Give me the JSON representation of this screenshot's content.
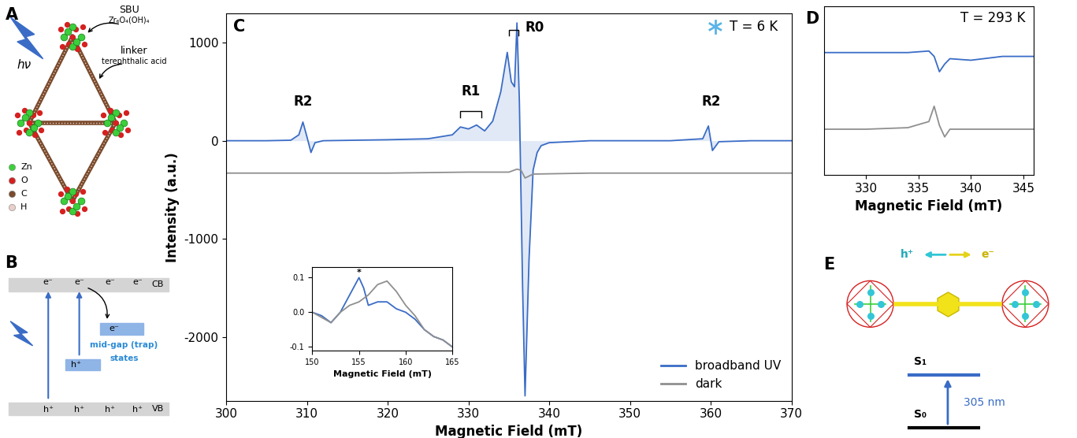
{
  "panel_labels": [
    "A",
    "B",
    "C",
    "D",
    "E"
  ],
  "chart_data": [
    {
      "type": "line",
      "x_label": "Magnetic Field (mT)",
      "y_label": "Intensity (a.u.)",
      "xlim": [
        300,
        370
      ],
      "xticks": [
        300,
        310,
        320,
        330,
        340,
        350,
        360,
        370
      ],
      "ylim": [
        -2650,
        1300
      ],
      "yticks": [
        -2000,
        -1000,
        0,
        1000
      ],
      "legend": "lower right",
      "condition": "T = 6 K",
      "series": [
        {
          "name": "broadband UV",
          "color": "#3a6cc6",
          "type": "area",
          "x": [
            300,
            305,
            308,
            309,
            309.5,
            310,
            310.5,
            311,
            312,
            320,
            325,
            328,
            329,
            330,
            331,
            332,
            333,
            334,
            334.8,
            335.3,
            335.7,
            336,
            336.3,
            336.7,
            337,
            337.5,
            338,
            338.5,
            339,
            340,
            345,
            350,
            355,
            359,
            359.7,
            360.2,
            361,
            365,
            370
          ],
          "values": [
            0,
            0,
            5,
            60,
            190,
            40,
            -120,
            -20,
            0,
            10,
            20,
            60,
            140,
            120,
            160,
            100,
            200,
            500,
            900,
            600,
            550,
            1200,
            400,
            -1500,
            -2600,
            -1200,
            -300,
            -120,
            -50,
            -20,
            0,
            0,
            0,
            20,
            150,
            -100,
            -10,
            0,
            0
          ]
        },
        {
          "name": "dark",
          "color": "#8f8f8f",
          "type": "line",
          "x": [
            300,
            320,
            330,
            335,
            336,
            336.5,
            337,
            338,
            345,
            370
          ],
          "values": [
            -330,
            -330,
            -320,
            -320,
            -290,
            -300,
            -380,
            -340,
            -330,
            -330
          ]
        }
      ],
      "annotations": [
        {
          "text": "R2",
          "x": 309.5,
          "y": 330
        },
        {
          "text": "R2",
          "x": 360,
          "y": 330
        },
        {
          "text": "R1",
          "x": 330.3,
          "y": 430,
          "bracket": [
            329,
            331.6,
            300
          ]
        },
        {
          "text": "R0",
          "x": 337.0,
          "y": 1150,
          "bracket": [
            335,
            336.2,
            1130
          ]
        }
      ]
    },
    {
      "type": "line",
      "x_label": "Magnetic Field (mT)",
      "xlim": [
        150,
        165
      ],
      "xticks": [
        150,
        155,
        160,
        165
      ],
      "ylim": [
        -0.11,
        0.13
      ],
      "yticks": [
        -0.1,
        {
          "value": 0,
          "label": "0.0"
        },
        0.1
      ],
      "series": [
        {
          "color": "#3a6cc6",
          "type": "line",
          "x": [
            150,
            151,
            152,
            153,
            154,
            155,
            155.5,
            156,
            157,
            158,
            159,
            160,
            161,
            162,
            163,
            164,
            165
          ],
          "values": [
            0.0,
            -0.01,
            -0.03,
            0.0,
            0.05,
            0.1,
            0.07,
            0.02,
            0.03,
            0.03,
            0.01,
            0.0,
            -0.02,
            -0.05,
            -0.07,
            -0.08,
            -0.1
          ]
        },
        {
          "color": "#8f8f8f",
          "type": "line",
          "x": [
            150,
            152,
            153,
            154,
            155,
            156,
            157,
            158,
            159,
            160,
            161,
            162,
            163,
            164,
            165
          ],
          "values": [
            0.0,
            -0.03,
            0.0,
            0.02,
            0.03,
            0.05,
            0.08,
            0.09,
            0.06,
            0.02,
            -0.01,
            -0.05,
            -0.07,
            -0.08,
            -0.1
          ]
        }
      ],
      "annotations": [
        {
          "text": "*",
          "x": 155,
          "y": 0.103
        }
      ]
    },
    {
      "type": "line",
      "x_label": "Magnetic Field (mT)",
      "condition": "T = 293 K",
      "xlim": [
        326,
        346
      ],
      "xticks": [
        330,
        335,
        340,
        345
      ],
      "ylim": [
        -0.6,
        1.6
      ],
      "tick_labels": "x",
      "series": [
        {
          "color": "#3a6cc6",
          "type": "line",
          "x": [
            326,
            330,
            334,
            336,
            336.5,
            337,
            337.5,
            338,
            340,
            343,
            346
          ],
          "values": [
            1.0,
            1.0,
            1.0,
            1.02,
            0.95,
            0.75,
            0.85,
            0.92,
            0.9,
            0.95,
            0.95
          ]
        },
        {
          "color": "#8f8f8f",
          "type": "line",
          "x": [
            326,
            330,
            334,
            336,
            336.5,
            337,
            337.5,
            338,
            340,
            346
          ],
          "values": [
            0.0,
            0.0,
            0.02,
            0.1,
            0.3,
            0.05,
            -0.1,
            0.0,
            0.0,
            0.0
          ]
        }
      ]
    }
  ],
  "diagrams": {
    "A": {
      "sbu": "SBU",
      "sbu_formula": "Zr₆O₄(OH)₄",
      "linker": "linker",
      "linker_name": "terephthalic acid",
      "light": "hν",
      "legend": [
        {
          "name": "Zn",
          "color": "#3ccf3c"
        },
        {
          "name": "O",
          "color": "#d62020"
        },
        {
          "name": "C",
          "color": "#7a4b2c"
        },
        {
          "name": "H",
          "color": "#e9cfc9"
        }
      ]
    },
    "B": {
      "cb": "CB",
      "vb": "VB",
      "cb_carriers": [
        "e⁻",
        "e⁻",
        "e⁻",
        "e⁻"
      ],
      "vb_carriers": [
        "h⁺",
        "h⁺",
        "h⁺",
        "h⁺"
      ],
      "trap_electron": "e⁻",
      "trap_hole": "h⁺",
      "trap_label": [
        "mid-gap (trap)",
        "states"
      ]
    },
    "E": {
      "hole": "h⁺",
      "electron": "e⁻",
      "levels": [
        "S₁",
        "S₀"
      ],
      "excitation": "305 nm"
    }
  }
}
